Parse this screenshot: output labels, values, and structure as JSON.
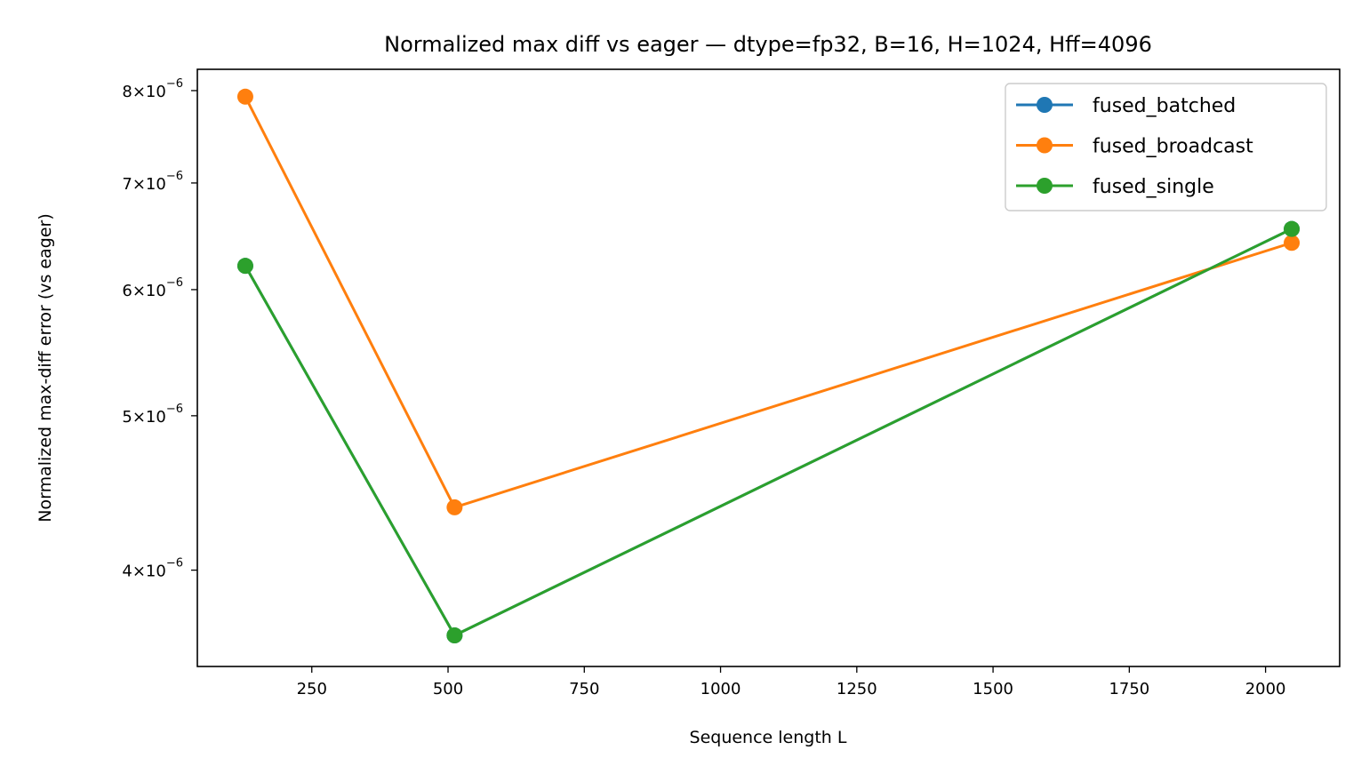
{
  "chart_data": {
    "type": "line",
    "title": "Normalized max diff vs eager — dtype=fp32, B=16, H=1024, Hff=4096",
    "xlabel": "Sequence length L",
    "ylabel": "Normalized max-diff error (vs eager)",
    "x": [
      128,
      512,
      2048
    ],
    "xlim": [
      40,
      2136
    ],
    "ylim": [
      3.48e-06,
      8.25e-06
    ],
    "yscale": "log",
    "grid": false,
    "legend_position": "top-right",
    "x_ticks": [
      {
        "value": 250,
        "label": "250"
      },
      {
        "value": 500,
        "label": "500"
      },
      {
        "value": 750,
        "label": "750"
      },
      {
        "value": 1000,
        "label": "1000"
      },
      {
        "value": 1250,
        "label": "1250"
      },
      {
        "value": 1500,
        "label": "1500"
      },
      {
        "value": 1750,
        "label": "1750"
      },
      {
        "value": 2000,
        "label": "2000"
      }
    ],
    "y_ticks": [
      {
        "value": 4e-06,
        "mantissa": "4",
        "base": "10",
        "exponent": "−6"
      },
      {
        "value": 5e-06,
        "mantissa": "5",
        "base": "10",
        "exponent": "−6"
      },
      {
        "value": 6e-06,
        "mantissa": "6",
        "base": "10",
        "exponent": "−6"
      },
      {
        "value": 7e-06,
        "mantissa": "7",
        "base": "10",
        "exponent": "−6"
      },
      {
        "value": 8e-06,
        "mantissa": "8",
        "base": "10",
        "exponent": "−6"
      }
    ],
    "series": [
      {
        "name": "fused_batched",
        "color": "#1f77b4",
        "values": [
          6.21e-06,
          3.64e-06,
          6.55e-06
        ]
      },
      {
        "name": "fused_broadcast",
        "color": "#ff7f0e",
        "values": [
          7.93e-06,
          4.38e-06,
          6.42e-06
        ]
      },
      {
        "name": "fused_single",
        "color": "#2ca02c",
        "values": [
          6.21e-06,
          3.64e-06,
          6.55e-06
        ]
      }
    ]
  }
}
